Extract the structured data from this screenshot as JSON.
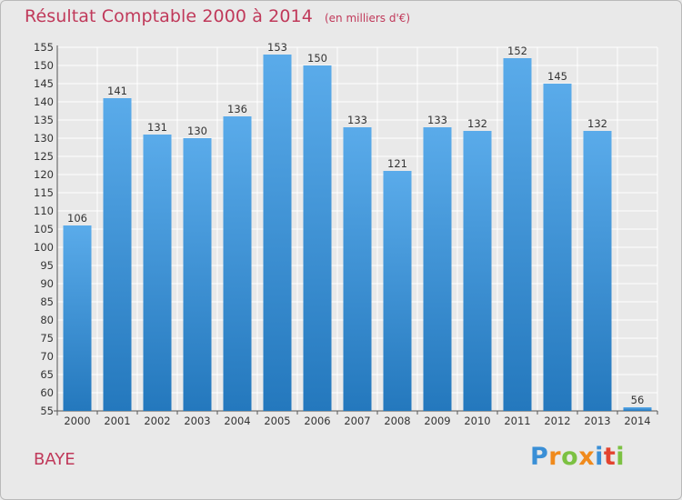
{
  "header": {
    "title": "Résultat Comptable 2000 à 2014",
    "unit": "(en milliers d'€)"
  },
  "footer": {
    "town": "BAYE",
    "logo_text": "Proxiti",
    "logo_letters": [
      {
        "ch": "P",
        "color": "#3a8fd6"
      },
      {
        "ch": "r",
        "color": "#f08a1c"
      },
      {
        "ch": "o",
        "color": "#7cc142"
      },
      {
        "ch": "x",
        "color": "#f08a1c"
      },
      {
        "ch": "i",
        "color": "#3a8fd6"
      },
      {
        "ch": "t",
        "color": "#e3432f"
      },
      {
        "ch": "i",
        "color": "#7cc142"
      }
    ]
  },
  "colors": {
    "title": "#c0395a",
    "bar_top": "#5aabea",
    "bar_bottom": "#2478bd",
    "grid": "#ffffff",
    "axis_text": "#333333"
  },
  "chart_data": {
    "type": "bar",
    "title": "Résultat Comptable 2000 à 2014",
    "ylabel": "",
    "xlabel": "",
    "categories": [
      "2000",
      "2001",
      "2002",
      "2003",
      "2004",
      "2005",
      "2006",
      "2007",
      "2008",
      "2009",
      "2010",
      "2011",
      "2012",
      "2013",
      "2014"
    ],
    "values": [
      106,
      141,
      131,
      130,
      136,
      153,
      150,
      133,
      121,
      133,
      132,
      152,
      145,
      132,
      56
    ],
    "ylim": [
      55,
      155
    ],
    "yticks": [
      55,
      60,
      65,
      70,
      75,
      80,
      85,
      90,
      95,
      100,
      105,
      110,
      115,
      120,
      125,
      130,
      135,
      140,
      145,
      150,
      155
    ],
    "grid": true
  }
}
